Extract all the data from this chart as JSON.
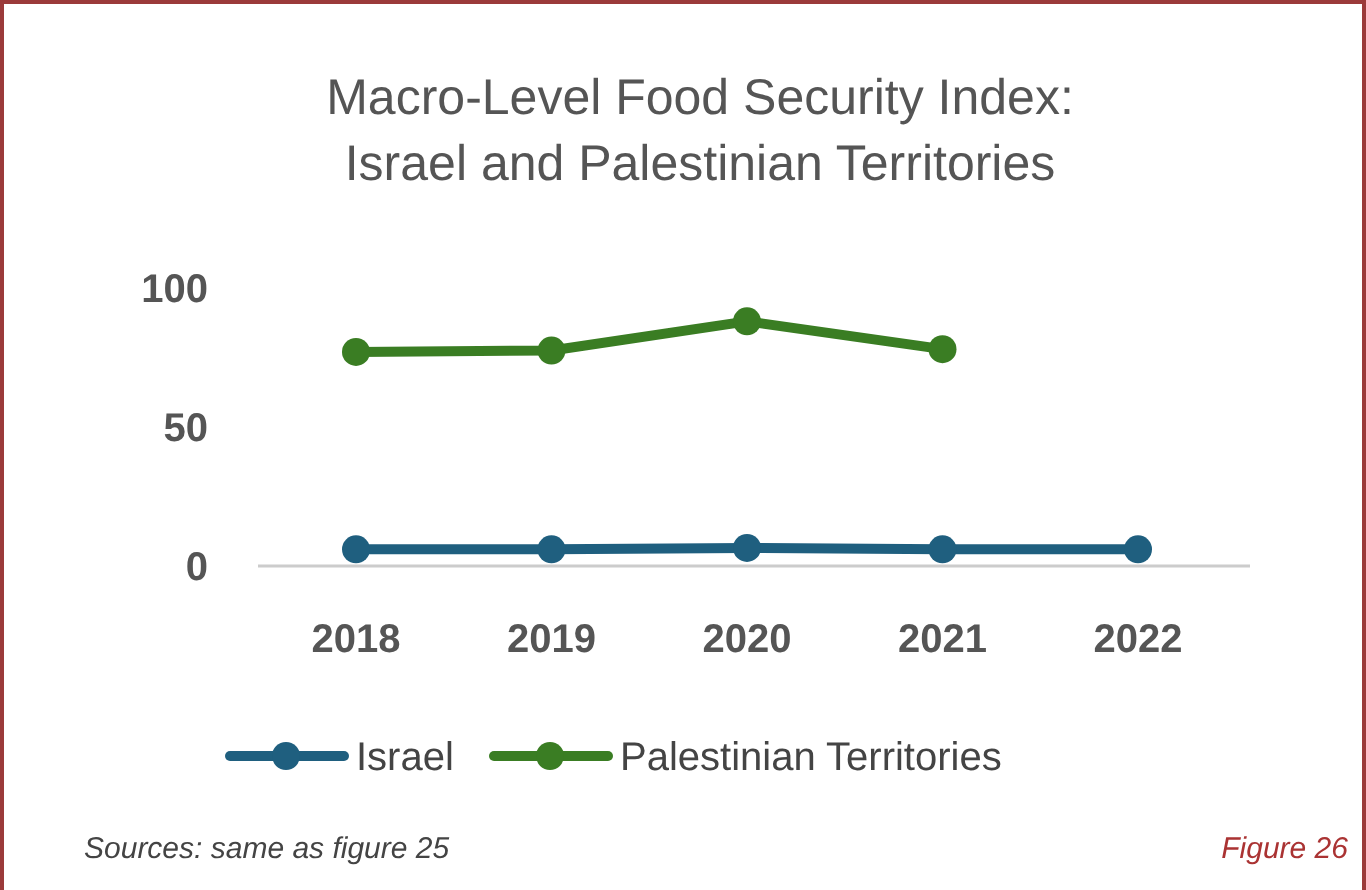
{
  "chart_data": {
    "type": "line",
    "title": "Macro-Level Food Security Index:\nIsrael and Palestinian Territories",
    "categories": [
      "2018",
      "2019",
      "2020",
      "2021",
      "2022"
    ],
    "series": [
      {
        "name": "Israel",
        "color": "#1f5f7f",
        "values": [
          6,
          6,
          6.5,
          6,
          6
        ]
      },
      {
        "name": "Palestinian Territories",
        "color": "#3a7d23",
        "values": [
          77,
          77.5,
          88,
          78,
          null
        ]
      }
    ],
    "ylim": [
      0,
      100
    ],
    "yticks": [
      0,
      50,
      100
    ],
    "grid": false,
    "legend": "bottom",
    "marker": "circle",
    "line_style": "solid",
    "annotations": [
      "Sources: same as figure 25",
      "Figure 26"
    ]
  }
}
